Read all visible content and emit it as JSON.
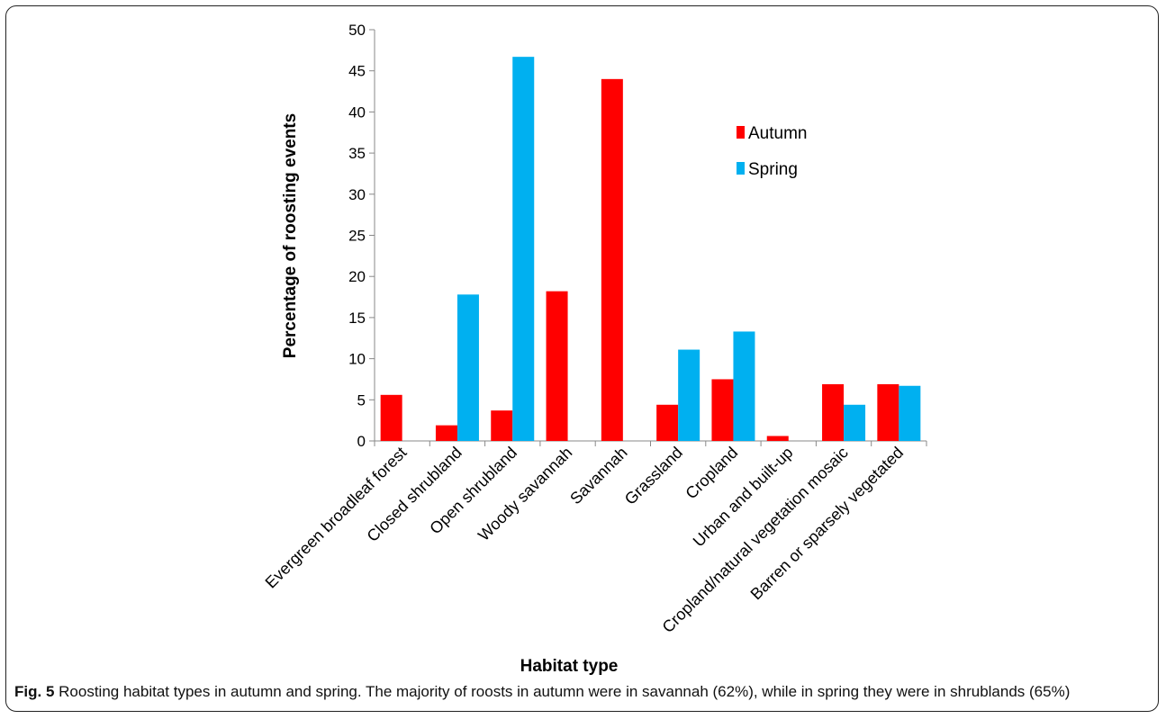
{
  "chart_data": {
    "type": "bar",
    "title": "",
    "xlabel": "Habitat type",
    "ylabel": "Percentage of roosting events",
    "ylim": [
      0,
      50
    ],
    "yticks": [
      0,
      5,
      10,
      15,
      20,
      25,
      30,
      35,
      40,
      45,
      50
    ],
    "categories": [
      "Evergreen broadleaf forest",
      "Closed shrubland",
      "Open shrubland",
      "Woody savannah",
      "Savannah",
      "Grassland",
      "Cropland",
      "Urban and built-up",
      "Cropland/natural vegetation mosaic",
      "Barren or sparsely vegetated"
    ],
    "series": [
      {
        "name": "Autumn",
        "color": "#ff0000",
        "values": [
          5.6,
          1.9,
          3.7,
          18.2,
          44.0,
          4.4,
          7.5,
          0.6,
          6.9,
          6.9
        ]
      },
      {
        "name": "Spring",
        "color": "#00b0f0",
        "values": [
          0,
          17.8,
          46.7,
          0,
          0,
          11.1,
          13.3,
          0,
          4.4,
          6.7
        ]
      }
    ],
    "grid": false,
    "legend_position": "top-right"
  },
  "caption": {
    "label": "Fig. 5",
    "text": "Roosting habitat types in autumn and spring. The majority of roosts in autumn were in savannah (62%), while in spring they were in shrublands (65%)"
  }
}
